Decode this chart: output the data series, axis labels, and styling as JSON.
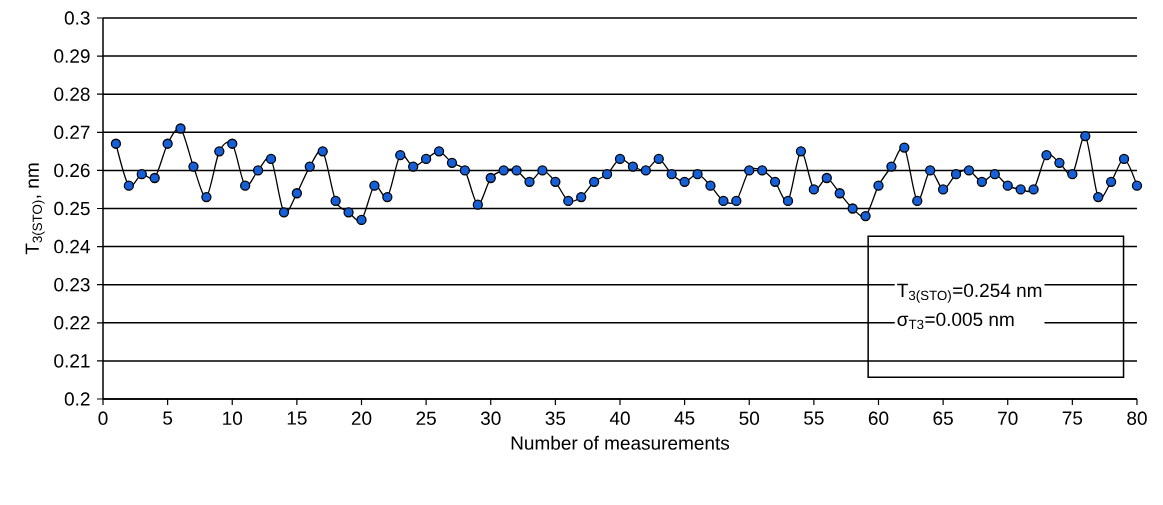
{
  "chart_data": {
    "type": "line",
    "xlabel": "Number of measurements",
    "ylabel": "T$_{3(STO)}$, nm",
    "x": [
      1,
      2,
      3,
      4,
      5,
      6,
      7,
      8,
      9,
      10,
      11,
      12,
      13,
      14,
      15,
      16,
      17,
      18,
      19,
      20,
      21,
      22,
      23,
      24,
      25,
      26,
      27,
      28,
      29,
      30,
      31,
      32,
      33,
      34,
      35,
      36,
      37,
      38,
      39,
      40,
      41,
      42,
      43,
      44,
      45,
      46,
      47,
      48,
      49,
      50,
      51,
      52,
      53,
      54,
      55,
      56,
      57,
      58,
      59,
      60,
      61,
      62,
      63,
      64,
      65,
      66,
      67,
      68,
      69,
      70,
      71,
      72,
      73,
      74,
      75,
      76,
      77,
      78,
      79,
      80
    ],
    "values": [
      0.267,
      0.256,
      0.259,
      0.258,
      0.267,
      0.271,
      0.261,
      0.253,
      0.265,
      0.267,
      0.256,
      0.26,
      0.263,
      0.249,
      0.254,
      0.261,
      0.265,
      0.252,
      0.249,
      0.247,
      0.256,
      0.253,
      0.264,
      0.261,
      0.263,
      0.265,
      0.262,
      0.26,
      0.251,
      0.258,
      0.26,
      0.26,
      0.257,
      0.26,
      0.257,
      0.252,
      0.253,
      0.257,
      0.259,
      0.263,
      0.261,
      0.26,
      0.263,
      0.259,
      0.257,
      0.259,
      0.256,
      0.252,
      0.252,
      0.26,
      0.26,
      0.257,
      0.252,
      0.265,
      0.255,
      0.258,
      0.254,
      0.25,
      0.248,
      0.256,
      0.261,
      0.266,
      0.252,
      0.26,
      0.255,
      0.259,
      0.26,
      0.257,
      0.259,
      0.256,
      0.255,
      0.255,
      0.264,
      0.262,
      0.259,
      0.269,
      0.253,
      0.257,
      0.263,
      0.256
    ],
    "color": "#1560d8",
    "marker": "circle",
    "grid": "y",
    "xlim": [
      0,
      80
    ],
    "xticks": [
      0,
      5,
      10,
      15,
      20,
      25,
      30,
      35,
      40,
      45,
      50,
      55,
      60,
      65,
      70,
      75,
      80
    ],
    "ylim": [
      0.2,
      0.3
    ],
    "yticks": [
      0.2,
      0.21,
      0.22,
      0.23,
      0.24,
      0.25,
      0.26,
      0.27,
      0.28,
      0.29,
      0.3
    ],
    "annotations": [
      "T$_{3(STO)}$=0.254 nm",
      "σ$_{T3}$=0.005 nm"
    ]
  }
}
